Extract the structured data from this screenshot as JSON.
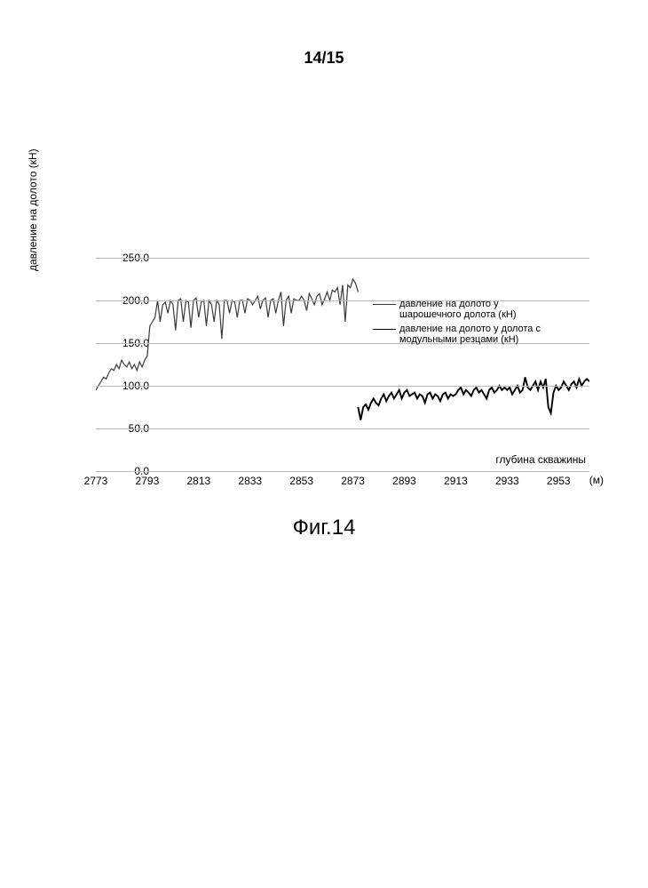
{
  "page_number": "14/15",
  "figure_caption": "Фиг.14",
  "chart": {
    "type": "line",
    "ylabel": "давление на долото (кН)",
    "xlabel": "глубина скважины",
    "xlabel_unit": "(м)",
    "ylim": [
      0.0,
      250.0
    ],
    "yticks": [
      0.0,
      50.0,
      100.0,
      150.0,
      200.0,
      250.0
    ],
    "ytick_labels": [
      "0.0",
      "50.0",
      "100.0",
      "150.0",
      "200.0",
      "250.0"
    ],
    "xlim": [
      2773,
      2965
    ],
    "xticks": [
      2773,
      2793,
      2813,
      2833,
      2853,
      2873,
      2893,
      2913,
      2933,
      2953
    ],
    "xtick_labels": [
      "2773",
      "2793",
      "2813",
      "2833",
      "2853",
      "2873",
      "2893",
      "2913",
      "2933",
      "2953"
    ],
    "grid_color": "#bbbbbb",
    "axis_color": "#888888",
    "background_color": "#ffffff",
    "series": [
      {
        "name": "series1",
        "legend_line1": "давление на долото у",
        "legend_line2": "шарошечного долота (кН)",
        "color": "#3a3a3a",
        "line_width": 1.2,
        "data": [
          [
            2773,
            95
          ],
          [
            2774,
            100
          ],
          [
            2775,
            105
          ],
          [
            2776,
            110
          ],
          [
            2777,
            108
          ],
          [
            2778,
            115
          ],
          [
            2779,
            120
          ],
          [
            2780,
            118
          ],
          [
            2781,
            125
          ],
          [
            2782,
            120
          ],
          [
            2783,
            130
          ],
          [
            2784,
            125
          ],
          [
            2785,
            122
          ],
          [
            2786,
            128
          ],
          [
            2787,
            120
          ],
          [
            2788,
            125
          ],
          [
            2789,
            118
          ],
          [
            2790,
            128
          ],
          [
            2791,
            122
          ],
          [
            2792,
            130
          ],
          [
            2793,
            135
          ],
          [
            2794,
            170
          ],
          [
            2795,
            175
          ],
          [
            2796,
            180
          ],
          [
            2797,
            200
          ],
          [
            2798,
            175
          ],
          [
            2799,
            195
          ],
          [
            2800,
            198
          ],
          [
            2801,
            185
          ],
          [
            2802,
            200
          ],
          [
            2803,
            195
          ],
          [
            2804,
            165
          ],
          [
            2805,
            200
          ],
          [
            2806,
            202
          ],
          [
            2807,
            175
          ],
          [
            2808,
            200
          ],
          [
            2809,
            198
          ],
          [
            2810,
            168
          ],
          [
            2811,
            200
          ],
          [
            2812,
            203
          ],
          [
            2813,
            180
          ],
          [
            2814,
            198
          ],
          [
            2815,
            200
          ],
          [
            2816,
            170
          ],
          [
            2817,
            200
          ],
          [
            2818,
            195
          ],
          [
            2819,
            175
          ],
          [
            2820,
            200
          ],
          [
            2821,
            195
          ],
          [
            2822,
            155
          ],
          [
            2823,
            200
          ],
          [
            2824,
            200
          ],
          [
            2825,
            185
          ],
          [
            2826,
            200
          ],
          [
            2827,
            198
          ],
          [
            2828,
            180
          ],
          [
            2829,
            200
          ],
          [
            2830,
            200
          ],
          [
            2831,
            185
          ],
          [
            2832,
            202
          ],
          [
            2833,
            200
          ],
          [
            2834,
            195
          ],
          [
            2835,
            200
          ],
          [
            2836,
            205
          ],
          [
            2837,
            190
          ],
          [
            2838,
            200
          ],
          [
            2839,
            203
          ],
          [
            2840,
            180
          ],
          [
            2841,
            200
          ],
          [
            2842,
            202
          ],
          [
            2843,
            185
          ],
          [
            2844,
            200
          ],
          [
            2845,
            210
          ],
          [
            2846,
            170
          ],
          [
            2847,
            200
          ],
          [
            2848,
            205
          ],
          [
            2849,
            185
          ],
          [
            2850,
            202
          ],
          [
            2851,
            200
          ],
          [
            2852,
            200
          ],
          [
            2853,
            205
          ],
          [
            2854,
            200
          ],
          [
            2855,
            188
          ],
          [
            2856,
            208
          ],
          [
            2857,
            202
          ],
          [
            2858,
            195
          ],
          [
            2859,
            205
          ],
          [
            2860,
            208
          ],
          [
            2861,
            195
          ],
          [
            2862,
            202
          ],
          [
            2863,
            210
          ],
          [
            2864,
            200
          ],
          [
            2865,
            212
          ],
          [
            2866,
            210
          ],
          [
            2867,
            215
          ],
          [
            2868,
            195
          ],
          [
            2869,
            218
          ],
          [
            2870,
            175
          ],
          [
            2871,
            218
          ],
          [
            2872,
            215
          ],
          [
            2873,
            225
          ],
          [
            2874,
            220
          ],
          [
            2875,
            210
          ]
        ]
      },
      {
        "name": "series2",
        "legend_line1": "давление на долото у долота с",
        "legend_line2": "модульными резцами (кН)",
        "color": "#000000",
        "line_width": 1.9,
        "data": [
          [
            2875,
            75
          ],
          [
            2876,
            60
          ],
          [
            2877,
            75
          ],
          [
            2878,
            78
          ],
          [
            2879,
            72
          ],
          [
            2880,
            80
          ],
          [
            2881,
            85
          ],
          [
            2882,
            80
          ],
          [
            2883,
            77
          ],
          [
            2884,
            85
          ],
          [
            2885,
            90
          ],
          [
            2886,
            82
          ],
          [
            2887,
            88
          ],
          [
            2888,
            92
          ],
          [
            2889,
            85
          ],
          [
            2890,
            90
          ],
          [
            2891,
            95
          ],
          [
            2892,
            85
          ],
          [
            2893,
            92
          ],
          [
            2894,
            95
          ],
          [
            2895,
            88
          ],
          [
            2896,
            90
          ],
          [
            2897,
            92
          ],
          [
            2898,
            85
          ],
          [
            2899,
            90
          ],
          [
            2900,
            88
          ],
          [
            2901,
            80
          ],
          [
            2902,
            90
          ],
          [
            2903,
            92
          ],
          [
            2904,
            85
          ],
          [
            2905,
            90
          ],
          [
            2906,
            88
          ],
          [
            2907,
            82
          ],
          [
            2908,
            90
          ],
          [
            2909,
            92
          ],
          [
            2910,
            85
          ],
          [
            2911,
            90
          ],
          [
            2912,
            88
          ],
          [
            2913,
            90
          ],
          [
            2914,
            95
          ],
          [
            2915,
            98
          ],
          [
            2916,
            90
          ],
          [
            2917,
            95
          ],
          [
            2918,
            92
          ],
          [
            2919,
            88
          ],
          [
            2920,
            95
          ],
          [
            2921,
            98
          ],
          [
            2922,
            92
          ],
          [
            2923,
            95
          ],
          [
            2924,
            90
          ],
          [
            2925,
            85
          ],
          [
            2926,
            95
          ],
          [
            2927,
            98
          ],
          [
            2928,
            92
          ],
          [
            2929,
            95
          ],
          [
            2930,
            100
          ],
          [
            2931,
            95
          ],
          [
            2932,
            98
          ],
          [
            2933,
            95
          ],
          [
            2934,
            98
          ],
          [
            2935,
            90
          ],
          [
            2936,
            95
          ],
          [
            2937,
            100
          ],
          [
            2938,
            92
          ],
          [
            2939,
            95
          ],
          [
            2940,
            110
          ],
          [
            2941,
            98
          ],
          [
            2942,
            95
          ],
          [
            2943,
            100
          ],
          [
            2944,
            105
          ],
          [
            2945,
            95
          ],
          [
            2946,
            105
          ],
          [
            2947,
            98
          ],
          [
            2948,
            108
          ],
          [
            2949,
            75
          ],
          [
            2950,
            68
          ],
          [
            2951,
            92
          ],
          [
            2952,
            100
          ],
          [
            2953,
            95
          ],
          [
            2954,
            98
          ],
          [
            2955,
            105
          ],
          [
            2956,
            100
          ],
          [
            2957,
            95
          ],
          [
            2958,
            102
          ],
          [
            2959,
            105
          ],
          [
            2960,
            98
          ],
          [
            2961,
            108
          ],
          [
            2962,
            100
          ],
          [
            2963,
            105
          ],
          [
            2964,
            108
          ],
          [
            2965,
            105
          ]
        ]
      }
    ],
    "label_fontsize": 12,
    "tick_fontsize": 12,
    "legend_fontsize": 11,
    "caption_fontsize": 24
  }
}
